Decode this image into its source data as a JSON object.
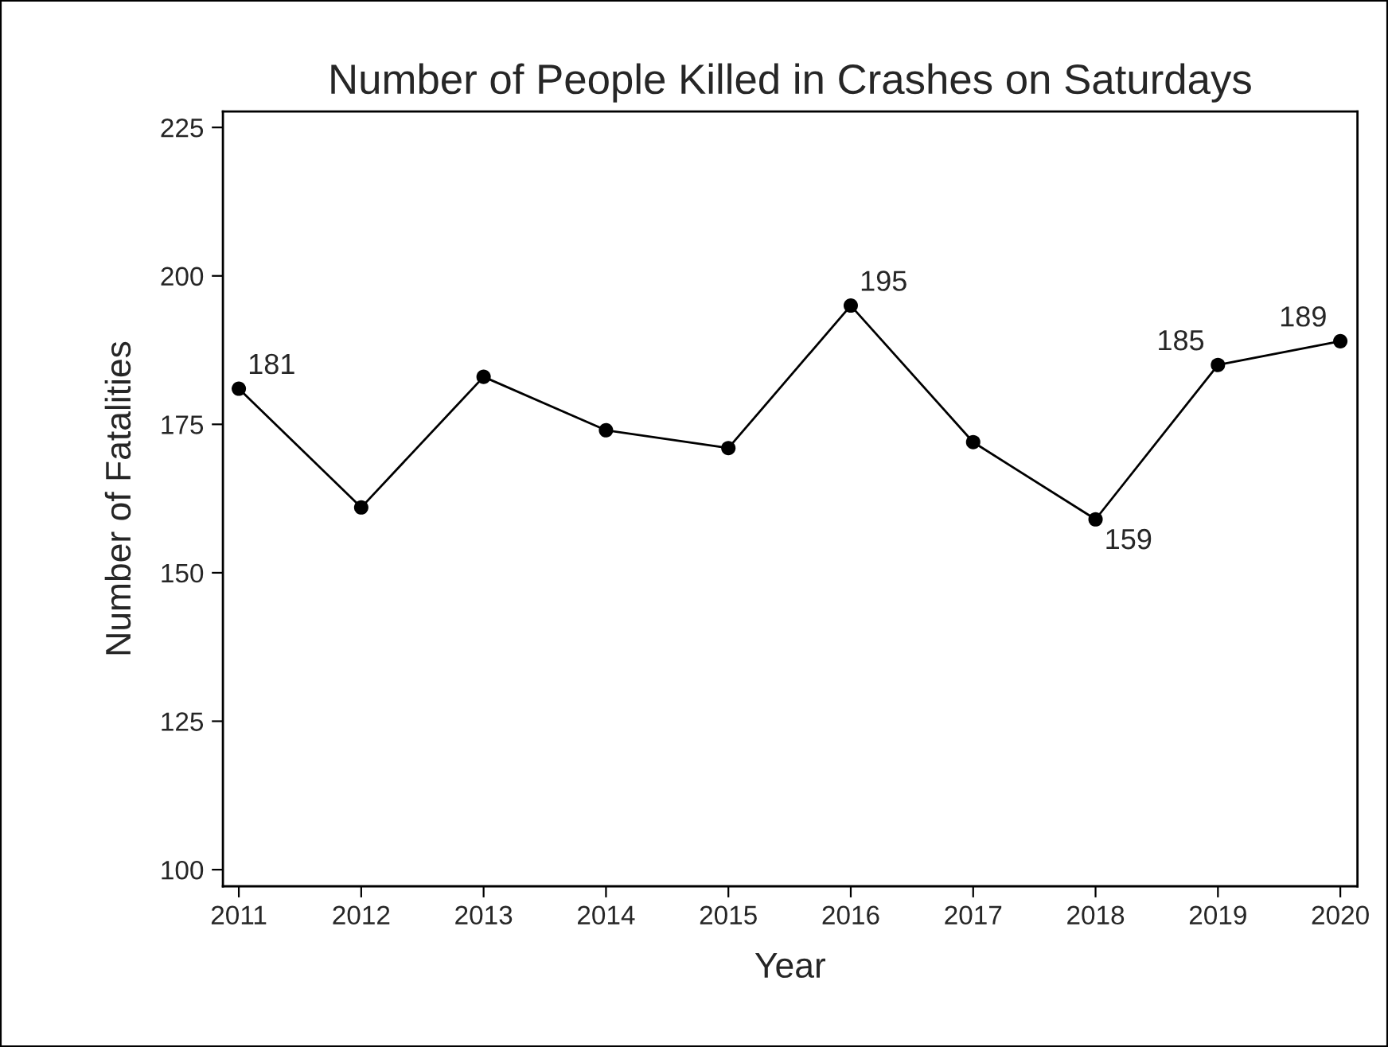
{
  "chart_data": {
    "type": "line",
    "title": "Number of People Killed in Crashes on Saturdays",
    "xlabel": "Year",
    "ylabel": "Number of Fatalities",
    "x": [
      2011,
      2012,
      2013,
      2014,
      2015,
      2016,
      2017,
      2018,
      2019,
      2020
    ],
    "series": [
      {
        "color": "#000000",
        "values": [
          181,
          161,
          183,
          174,
          171,
          195,
          172,
          159,
          185,
          189
        ],
        "value_labels": [
          "181",
          null,
          null,
          null,
          null,
          "195",
          null,
          "159",
          "185",
          "189"
        ]
      }
    ],
    "xlim": [
      2010.87,
      2020.14
    ],
    "xticks": [
      2011,
      2012,
      2013,
      2014,
      2015,
      2016,
      2017,
      2018,
      2019,
      2020
    ],
    "ylim": [
      97.2,
      227.7
    ],
    "yticks": [
      100,
      125,
      150,
      175,
      200,
      225
    ],
    "grid": false,
    "marker": "circle",
    "line_style": "solid"
  }
}
